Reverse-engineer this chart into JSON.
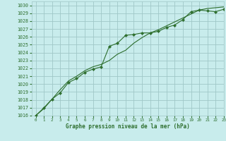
{
  "title": "Graphe pression niveau de la mer (hPa)",
  "bg_color": "#c8ecec",
  "grid_color": "#a0c8c8",
  "line_color": "#2d6e2d",
  "xlim": [
    -0.5,
    23
  ],
  "ylim": [
    1016,
    1030.5
  ],
  "yticks": [
    1016,
    1017,
    1018,
    1019,
    1020,
    1021,
    1022,
    1023,
    1024,
    1025,
    1026,
    1027,
    1028,
    1029,
    1030
  ],
  "xticks": [
    0,
    1,
    2,
    3,
    4,
    5,
    6,
    7,
    8,
    9,
    10,
    11,
    12,
    13,
    14,
    15,
    16,
    17,
    18,
    19,
    20,
    21,
    22,
    23
  ],
  "series1_x": [
    0,
    1,
    2,
    3,
    4,
    5,
    6,
    7,
    8,
    9,
    10,
    11,
    12,
    13,
    14,
    15,
    16,
    17,
    18,
    19,
    20,
    21,
    22,
    23
  ],
  "series1_y": [
    1016.0,
    1016.9,
    1018.1,
    1019.3,
    1020.4,
    1021.0,
    1021.7,
    1022.2,
    1022.5,
    1023.0,
    1023.8,
    1024.3,
    1025.2,
    1025.9,
    1026.5,
    1026.9,
    1027.4,
    1027.9,
    1028.4,
    1028.9,
    1029.4,
    1029.6,
    1029.7,
    1029.8
  ],
  "series2_x": [
    0,
    1,
    2,
    3,
    4,
    5,
    6,
    7,
    8,
    9,
    10,
    11,
    12,
    13,
    14,
    15,
    16,
    17,
    18,
    19,
    20,
    21,
    22,
    23
  ],
  "series2_y": [
    1016.0,
    1017.0,
    1018.1,
    1018.9,
    1020.2,
    1020.7,
    1021.5,
    1021.9,
    1022.2,
    1024.8,
    1025.2,
    1026.2,
    1026.3,
    1026.5,
    1026.5,
    1026.7,
    1027.2,
    1027.5,
    1028.2,
    1029.2,
    1029.4,
    1029.3,
    1029.2,
    1029.5
  ]
}
